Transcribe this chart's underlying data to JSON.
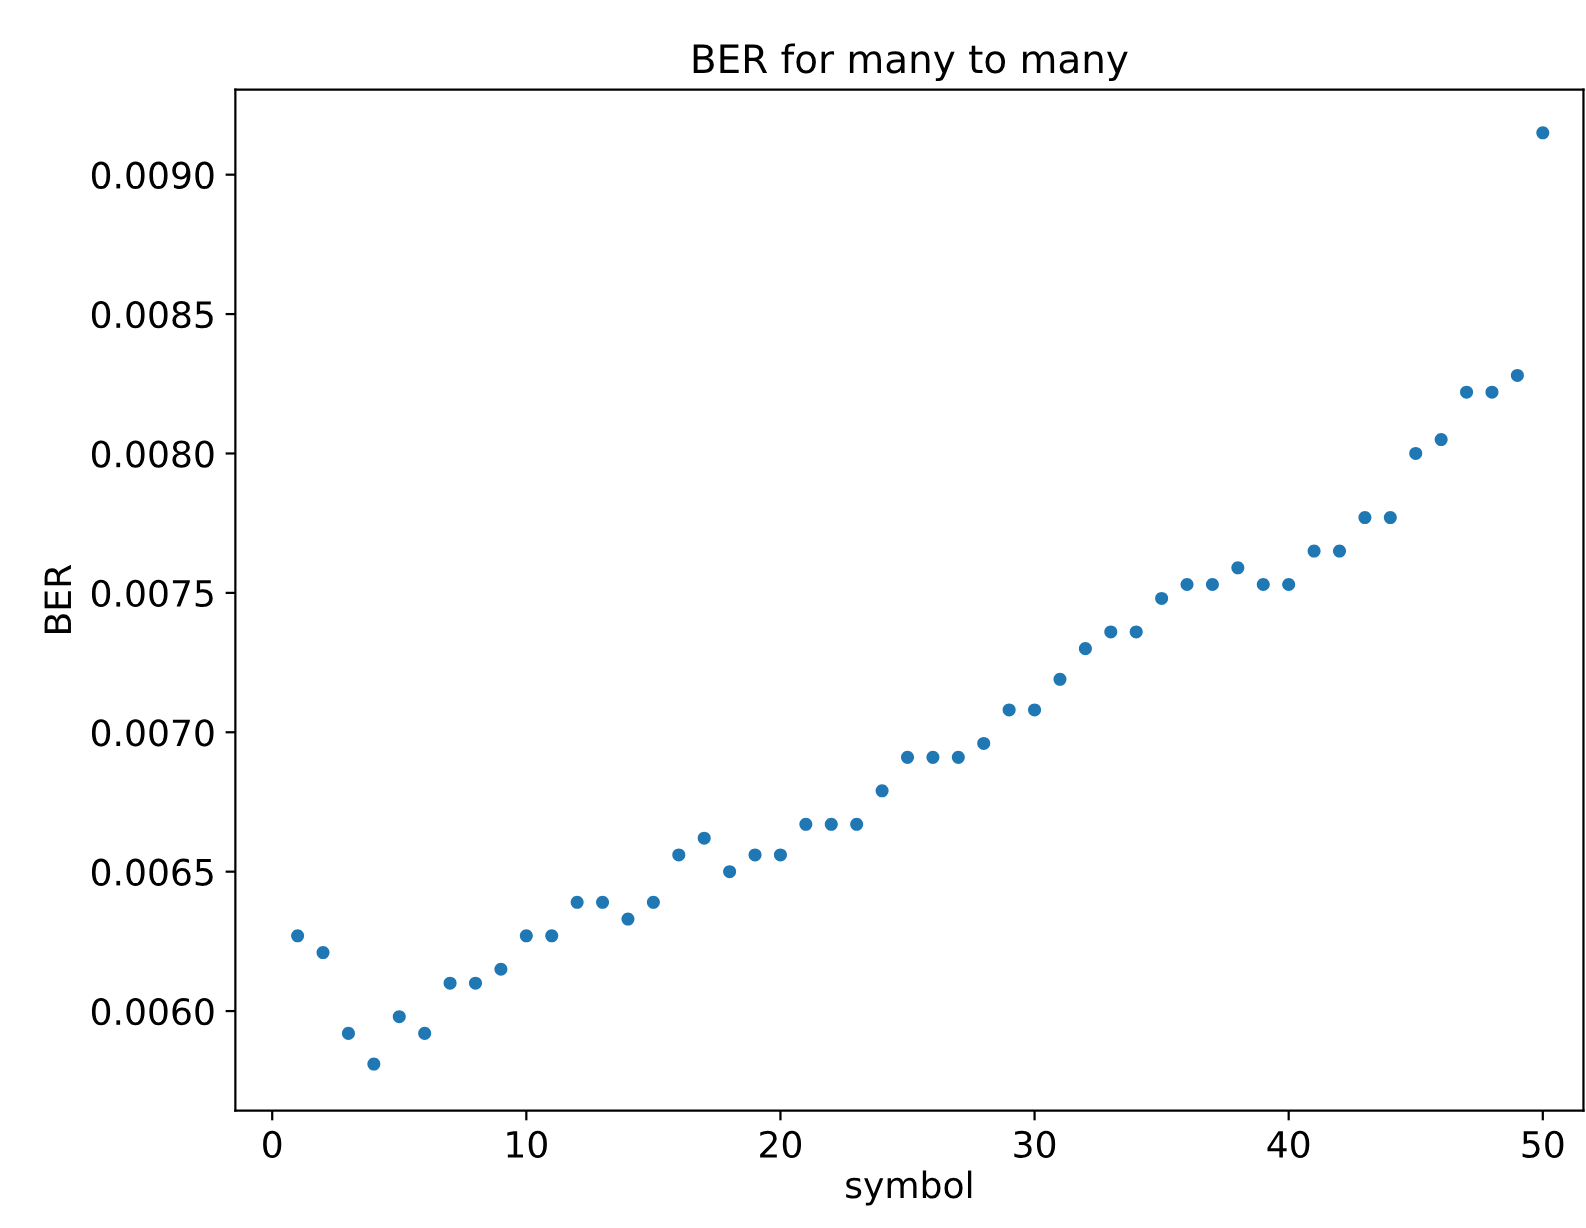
{
  "chart_data": {
    "type": "scatter",
    "title": "BER for many to many",
    "xlabel": "symbol",
    "ylabel": "BER",
    "x": [
      1,
      2,
      3,
      4,
      5,
      6,
      7,
      8,
      9,
      10,
      11,
      12,
      13,
      14,
      15,
      16,
      17,
      18,
      19,
      20,
      21,
      22,
      23,
      24,
      25,
      26,
      27,
      28,
      29,
      30,
      31,
      32,
      33,
      34,
      35,
      36,
      37,
      38,
      39,
      40,
      41,
      42,
      43,
      44,
      45,
      46,
      47,
      48,
      49,
      50
    ],
    "series": [
      {
        "color": "#1f77b4",
        "values": [
          0.00627,
          0.00621,
          0.00592,
          0.00581,
          0.00598,
          0.00592,
          0.0061,
          0.0061,
          0.00615,
          0.00627,
          0.00627,
          0.00639,
          0.00639,
          0.00633,
          0.00639,
          0.00656,
          0.00662,
          0.0065,
          0.00656,
          0.00656,
          0.00667,
          0.00667,
          0.00667,
          0.00679,
          0.00691,
          0.00691,
          0.00691,
          0.00696,
          0.00708,
          0.00708,
          0.00719,
          0.0073,
          0.00736,
          0.00736,
          0.00748,
          0.00753,
          0.00753,
          0.00759,
          0.00753,
          0.00753,
          0.00765,
          0.00765,
          0.00777,
          0.00777,
          0.008,
          0.00805,
          0.00822,
          0.00822,
          0.00828,
          0.00915
        ]
      }
    ],
    "xlim": [
      -1.45,
      51.6
    ],
    "ylim": [
      0.005643,
      0.009305
    ],
    "xticks": [
      0,
      10,
      20,
      30,
      40,
      50
    ],
    "yticks": [
      {
        "value": 0.006,
        "label": "0.0060"
      },
      {
        "value": 0.0065,
        "label": "0.0065"
      },
      {
        "value": 0.007,
        "label": "0.0070"
      },
      {
        "value": 0.0075,
        "label": "0.0075"
      },
      {
        "value": 0.008,
        "label": "0.0080"
      },
      {
        "value": 0.0085,
        "label": "0.0085"
      },
      {
        "value": 0.009,
        "label": "0.0090"
      }
    ],
    "marker": "circle",
    "grid": false
  }
}
